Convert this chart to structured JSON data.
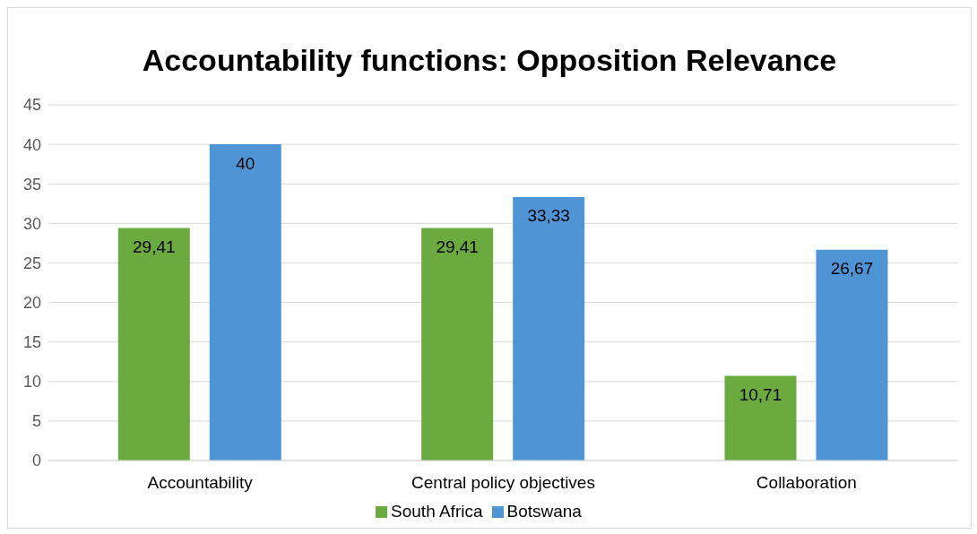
{
  "chart_data": {
    "type": "bar",
    "title": "Accountability functions: Opposition Relevance",
    "categories": [
      "Accountability",
      "Central policy objectives",
      "Collaboration"
    ],
    "series": [
      {
        "name": "South Africa",
        "color": "#6aaa3f",
        "values": [
          29.41,
          29.41,
          10.71
        ],
        "value_labels": [
          "29,41",
          "29,41",
          "10,71"
        ]
      },
      {
        "name": "Botswana",
        "color": "#4f95d6",
        "values": [
          40,
          33.33,
          26.67
        ],
        "value_labels": [
          "40",
          "33,33",
          "26,67"
        ]
      }
    ],
    "ylim": [
      0,
      45
    ],
    "yticks": [
      0,
      5,
      10,
      15,
      20,
      25,
      30,
      35,
      40,
      45
    ],
    "grid": "y",
    "legend": "bottom"
  }
}
